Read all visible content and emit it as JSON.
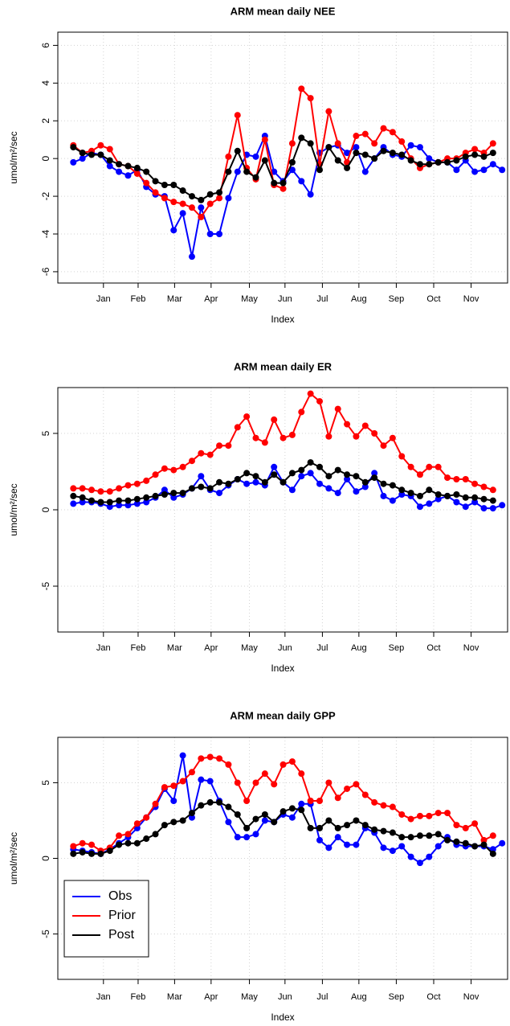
{
  "chart_data": [
    {
      "type": "line",
      "title": "ARM mean daily NEE",
      "x_label": "Index",
      "y_label": "umol/m²/sec",
      "x": [
        1,
        2,
        3,
        4,
        5,
        6,
        7,
        8,
        9,
        10,
        11,
        12,
        13,
        14,
        15,
        16,
        17,
        18,
        19,
        20,
        21,
        22,
        23,
        24,
        25,
        26,
        27,
        28,
        29,
        30,
        31,
        32,
        33,
        34,
        35,
        36,
        37,
        38,
        39,
        40,
        41,
        42,
        43,
        44,
        45,
        46,
        47,
        48
      ],
      "xlim": [
        -0.7,
        48.6
      ],
      "xticks": [
        {
          "value": 4.3,
          "label": "Jan"
        },
        {
          "value": 8.1,
          "label": "Feb"
        },
        {
          "value": 12.1,
          "label": "Mar"
        },
        {
          "value": 16.1,
          "label": "Apr"
        },
        {
          "value": 20.3,
          "label": "May"
        },
        {
          "value": 24.2,
          "label": "Jun"
        },
        {
          "value": 28.3,
          "label": "Jul"
        },
        {
          "value": 32.3,
          "label": "Aug"
        },
        {
          "value": 36.4,
          "label": "Sep"
        },
        {
          "value": 40.5,
          "label": "Oct"
        },
        {
          "value": 44.6,
          "label": "Nov"
        }
      ],
      "ylim": [
        -6.6,
        6.7
      ],
      "yticks": [
        -6,
        -4,
        -2,
        0,
        2,
        4,
        6
      ],
      "grid": true,
      "series": [
        {
          "name": "Obs",
          "color": "#0000ff",
          "values": [
            -0.2,
            0.0,
            0.3,
            0.2,
            -0.4,
            -0.7,
            -0.9,
            -0.6,
            -1.5,
            -1.9,
            -2.0,
            -3.8,
            -2.9,
            -5.2,
            -2.6,
            -4.0,
            -4.0,
            -2.1,
            -0.7,
            0.2,
            0.1,
            1.2,
            -0.7,
            -1.2,
            -0.6,
            -1.2,
            -1.9,
            0.3,
            0.6,
            0.7,
            0.3,
            0.6,
            -0.7,
            0.0,
            0.6,
            0.2,
            0.1,
            0.7,
            0.6,
            0.0,
            -0.2,
            -0.2,
            -0.6,
            -0.1,
            -0.7,
            -0.6,
            -0.3,
            -0.6
          ]
        },
        {
          "name": "Prior",
          "color": "#ff0000",
          "values": [
            0.7,
            0.3,
            0.4,
            0.7,
            0.5,
            -0.3,
            -0.4,
            -0.8,
            -1.3,
            -1.8,
            -2.1,
            -2.3,
            -2.4,
            -2.6,
            -3.1,
            -2.4,
            -2.1,
            0.1,
            2.3,
            -0.5,
            -1.1,
            1.0,
            -1.4,
            -1.6,
            0.8,
            3.7,
            3.2,
            -0.3,
            2.5,
            0.8,
            -0.2,
            1.2,
            1.3,
            0.8,
            1.6,
            1.4,
            0.9,
            0.0,
            -0.5,
            -0.3,
            -0.2,
            0.0,
            0.0,
            0.3,
            0.5,
            0.3,
            0.8,
            null
          ]
        },
        {
          "name": "Post",
          "color": "#000000",
          "values": [
            0.6,
            0.3,
            0.2,
            0.2,
            -0.1,
            -0.3,
            -0.4,
            -0.5,
            -0.7,
            -1.2,
            -1.4,
            -1.4,
            -1.7,
            -2.0,
            -2.2,
            -1.9,
            -1.8,
            -0.7,
            0.4,
            -0.7,
            -1.0,
            -0.1,
            -1.3,
            -1.3,
            -0.2,
            1.1,
            0.8,
            -0.6,
            0.6,
            -0.1,
            -0.5,
            0.3,
            0.2,
            0.0,
            0.4,
            0.3,
            0.2,
            -0.1,
            -0.3,
            -0.3,
            -0.2,
            -0.2,
            -0.1,
            0.1,
            0.2,
            0.1,
            0.3,
            null
          ]
        }
      ]
    },
    {
      "type": "line",
      "title": "ARM mean daily ER",
      "x_label": "Index",
      "y_label": "umol/m²/sec",
      "x": [
        1,
        2,
        3,
        4,
        5,
        6,
        7,
        8,
        9,
        10,
        11,
        12,
        13,
        14,
        15,
        16,
        17,
        18,
        19,
        20,
        21,
        22,
        23,
        24,
        25,
        26,
        27,
        28,
        29,
        30,
        31,
        32,
        33,
        34,
        35,
        36,
        37,
        38,
        39,
        40,
        41,
        42,
        43,
        44,
        45,
        46,
        47,
        48
      ],
      "xlim": [
        -0.7,
        48.6
      ],
      "xticks": [
        {
          "value": 4.3,
          "label": "Jan"
        },
        {
          "value": 8.1,
          "label": "Feb"
        },
        {
          "value": 12.1,
          "label": "Mar"
        },
        {
          "value": 16.1,
          "label": "Apr"
        },
        {
          "value": 20.3,
          "label": "May"
        },
        {
          "value": 24.2,
          "label": "Jun"
        },
        {
          "value": 28.3,
          "label": "Jul"
        },
        {
          "value": 32.3,
          "label": "Aug"
        },
        {
          "value": 36.4,
          "label": "Sep"
        },
        {
          "value": 40.5,
          "label": "Oct"
        },
        {
          "value": 44.6,
          "label": "Nov"
        }
      ],
      "ylim": [
        -8,
        8
      ],
      "yticks": [
        -5,
        0,
        5
      ],
      "grid": true,
      "series": [
        {
          "name": "Obs",
          "color": "#0000ff",
          "values": [
            0.4,
            0.5,
            0.5,
            0.4,
            0.2,
            0.3,
            0.3,
            0.4,
            0.5,
            0.8,
            1.3,
            0.8,
            1.0,
            1.4,
            2.2,
            1.3,
            1.1,
            1.6,
            2.0,
            1.7,
            1.8,
            1.6,
            2.8,
            1.8,
            1.3,
            2.2,
            2.4,
            1.7,
            1.4,
            1.1,
            2.0,
            1.2,
            1.5,
            2.4,
            0.9,
            0.6,
            1.0,
            0.9,
            0.2,
            0.4,
            0.7,
            0.9,
            0.5,
            0.2,
            0.5,
            0.1,
            0.1,
            0.3
          ]
        },
        {
          "name": "Prior",
          "color": "#ff0000",
          "values": [
            1.4,
            1.4,
            1.3,
            1.2,
            1.2,
            1.4,
            1.6,
            1.7,
            1.9,
            2.3,
            2.7,
            2.6,
            2.8,
            3.2,
            3.7,
            3.6,
            4.2,
            4.2,
            5.4,
            6.1,
            4.7,
            4.4,
            5.9,
            4.7,
            4.9,
            6.4,
            7.6,
            7.1,
            4.8,
            6.6,
            5.6,
            4.8,
            5.5,
            5.0,
            4.2,
            4.7,
            3.5,
            2.8,
            2.3,
            2.8,
            2.8,
            2.1,
            2.0,
            2.0,
            1.7,
            1.5,
            1.3,
            null
          ]
        },
        {
          "name": "Post",
          "color": "#000000",
          "values": [
            0.9,
            0.8,
            0.6,
            0.5,
            0.5,
            0.6,
            0.6,
            0.7,
            0.8,
            0.9,
            1.0,
            1.1,
            1.1,
            1.4,
            1.5,
            1.4,
            1.8,
            1.7,
            2.0,
            2.4,
            2.2,
            1.8,
            2.3,
            1.8,
            2.4,
            2.6,
            3.1,
            2.8,
            2.2,
            2.6,
            2.3,
            2.2,
            1.8,
            2.1,
            1.7,
            1.6,
            1.3,
            1.1,
            0.9,
            1.3,
            1.0,
            0.9,
            1.0,
            0.8,
            0.8,
            0.7,
            0.6,
            null
          ]
        }
      ]
    },
    {
      "type": "line",
      "title": "ARM mean daily GPP",
      "x_label": "Index",
      "y_label": "umol/m²/sec",
      "legend": "bottomleft",
      "x": [
        1,
        2,
        3,
        4,
        5,
        6,
        7,
        8,
        9,
        10,
        11,
        12,
        13,
        14,
        15,
        16,
        17,
        18,
        19,
        20,
        21,
        22,
        23,
        24,
        25,
        26,
        27,
        28,
        29,
        30,
        31,
        32,
        33,
        34,
        35,
        36,
        37,
        38,
        39,
        40,
        41,
        42,
        43,
        44,
        45,
        46,
        47,
        48
      ],
      "xlim": [
        -0.7,
        48.6
      ],
      "xticks": [
        {
          "value": 4.3,
          "label": "Jan"
        },
        {
          "value": 8.1,
          "label": "Feb"
        },
        {
          "value": 12.1,
          "label": "Mar"
        },
        {
          "value": 16.1,
          "label": "Apr"
        },
        {
          "value": 20.3,
          "label": "May"
        },
        {
          "value": 24.2,
          "label": "Jun"
        },
        {
          "value": 28.3,
          "label": "Jul"
        },
        {
          "value": 32.3,
          "label": "Aug"
        },
        {
          "value": 36.4,
          "label": "Sep"
        },
        {
          "value": 40.5,
          "label": "Oct"
        },
        {
          "value": 44.6,
          "label": "Nov"
        }
      ],
      "ylim": [
        -8,
        8
      ],
      "yticks": [
        -5,
        0,
        5
      ],
      "grid": true,
      "series": [
        {
          "name": "Obs",
          "color": "#0000ff",
          "values": [
            0.6,
            0.5,
            0.4,
            0.3,
            0.6,
            1.0,
            1.4,
            2.0,
            2.7,
            3.4,
            4.6,
            3.8,
            6.8,
            2.7,
            5.2,
            5.1,
            3.8,
            2.4,
            1.4,
            1.4,
            1.6,
            2.5,
            2.4,
            2.9,
            2.7,
            3.6,
            3.6,
            1.2,
            0.7,
            1.4,
            0.9,
            0.9,
            2.0,
            1.7,
            0.7,
            0.5,
            0.8,
            0.1,
            -0.3,
            0.1,
            0.8,
            1.4,
            0.9,
            0.8,
            0.8,
            0.8,
            0.6,
            1.0
          ]
        },
        {
          "name": "Prior",
          "color": "#ff0000",
          "values": [
            0.8,
            1.0,
            0.9,
            0.5,
            0.7,
            1.5,
            1.6,
            2.3,
            2.7,
            3.6,
            4.7,
            4.8,
            5.1,
            5.7,
            6.6,
            6.7,
            6.6,
            6.2,
            5.0,
            3.8,
            5.0,
            5.6,
            4.9,
            6.2,
            6.4,
            5.6,
            3.8,
            3.8,
            5.0,
            4.0,
            4.6,
            4.9,
            4.2,
            3.7,
            3.5,
            3.4,
            2.9,
            2.6,
            2.8,
            2.8,
            3.0,
            3.0,
            2.2,
            2.0,
            2.3,
            1.2,
            1.5,
            null
          ]
        },
        {
          "name": "Post",
          "color": "#000000",
          "values": [
            0.3,
            0.4,
            0.3,
            0.3,
            0.5,
            0.9,
            1.0,
            1.0,
            1.3,
            1.6,
            2.2,
            2.4,
            2.5,
            3.0,
            3.5,
            3.7,
            3.7,
            3.4,
            2.9,
            2.0,
            2.6,
            2.9,
            2.4,
            3.1,
            3.3,
            3.2,
            2.0,
            2.0,
            2.5,
            2.0,
            2.2,
            2.5,
            2.2,
            1.9,
            1.8,
            1.7,
            1.4,
            1.4,
            1.5,
            1.5,
            1.6,
            1.2,
            1.1,
            1.0,
            0.8,
            0.9,
            0.3,
            null
          ]
        }
      ]
    }
  ]
}
